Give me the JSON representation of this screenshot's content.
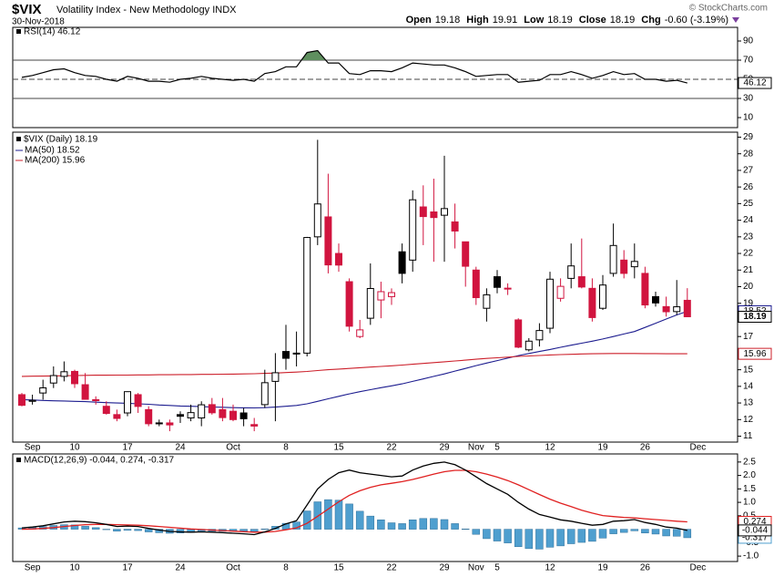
{
  "header": {
    "symbol": "$VIX",
    "description": "Volatility Index - New Methodology INDX",
    "date": "30-Nov-2018",
    "credit": "© StockCharts.com",
    "quote": [
      {
        "label": "Open",
        "value": "19.18"
      },
      {
        "label": "High",
        "value": "19.91"
      },
      {
        "label": "Low",
        "value": "18.19"
      },
      {
        "label": "Close",
        "value": "18.19"
      },
      {
        "label": "Chg",
        "value": "-0.60 (-3.19%)"
      }
    ]
  },
  "chart_data": [
    {
      "type": "line",
      "ylim": [
        0,
        100
      ],
      "yticks": [
        90,
        70,
        50,
        30,
        10
      ],
      "levels": [
        {
          "value": 70,
          "style": "solid",
          "fill": "#5f8f5f"
        },
        {
          "value": 50,
          "style": "dashed"
        },
        {
          "value": 30,
          "style": "solid"
        }
      ],
      "series": [
        {
          "name": "RSI(14) 46.12",
          "color": "#000000",
          "values": [
            52,
            54,
            57,
            60,
            61,
            57,
            54,
            53,
            50,
            48,
            53,
            51,
            48,
            48,
            47,
            50,
            51,
            53,
            51,
            50,
            49,
            50,
            48,
            56,
            58,
            63,
            63,
            78,
            80,
            67,
            67,
            56,
            55,
            59,
            59,
            58,
            62,
            67,
            66,
            65,
            65,
            62,
            58,
            53,
            54,
            55,
            55,
            47,
            48,
            49,
            55,
            55,
            58,
            55,
            51,
            54,
            58,
            55,
            56,
            50,
            50,
            48,
            49,
            46.12,
            null
          ]
        }
      ]
    },
    {
      "type": "candlestick",
      "name": "$VIX (Daily) 18.19",
      "up_color": "#000000",
      "down_color": "#d1143f",
      "categories": [
        null,
        "Sep",
        null,
        null,
        null,
        "10",
        null,
        null,
        null,
        null,
        "17",
        null,
        null,
        null,
        null,
        "24",
        null,
        null,
        null,
        null,
        "Oct",
        null,
        null,
        null,
        null,
        "8",
        null,
        null,
        null,
        null,
        "15",
        null,
        null,
        null,
        null,
        "22",
        null,
        null,
        null,
        null,
        "29",
        null,
        null,
        "Nov",
        null,
        "5",
        null,
        null,
        null,
        null,
        "12",
        null,
        null,
        null,
        null,
        "19",
        null,
        null,
        null,
        "26",
        null,
        null,
        null,
        null,
        "Dec"
      ],
      "open": [
        13.5,
        13.1,
        13.6,
        14.2,
        14.6,
        14.9,
        14.1,
        13.2,
        12.8,
        12.3,
        12.4,
        13.5,
        12.6,
        11.8,
        11.8,
        12.3,
        12.1,
        12.1,
        12.9,
        12.6,
        12.5,
        12.4,
        11.7,
        12.9,
        14.3,
        16.1,
        16.0,
        16.0,
        23.0,
        24.2,
        22.0,
        20.3,
        17.0,
        18.1,
        19.2,
        19.4,
        22.1,
        21.6,
        24.8,
        24.5,
        24.3,
        23.9,
        22.7,
        21.0,
        18.7,
        20.6,
        19.9,
        18.0,
        16.2,
        16.8,
        17.5,
        19.3,
        20.5,
        20.6,
        19.9,
        18.7,
        20.8,
        21.6,
        21.2,
        20.8,
        19.4,
        18.8,
        18.5,
        19.18,
        null
      ],
      "high": [
        13.6,
        13.5,
        14.4,
        15.2,
        15.5,
        15.0,
        14.8,
        13.4,
        13.1,
        12.6,
        13.7,
        13.6,
        12.8,
        12.0,
        12.0,
        12.5,
        12.9,
        13.1,
        13.3,
        13.3,
        12.9,
        12.7,
        12.1,
        15.0,
        16.0,
        17.7,
        17.3,
        23.0,
        28.84,
        26.8,
        22.6,
        20.5,
        18.0,
        21.4,
        20.3,
        19.9,
        22.6,
        25.8,
        26.1,
        26.5,
        27.88,
        25.0,
        22.7,
        21.2,
        19.9,
        21.0,
        20.2,
        18.1,
        16.9,
        17.8,
        20.9,
        20.5,
        22.6,
        22.9,
        20.5,
        20.7,
        23.8,
        22.2,
        22.6,
        21.2,
        19.7,
        19.4,
        20.4,
        19.91,
        null
      ],
      "low": [
        12.8,
        12.9,
        13.2,
        13.9,
        14.3,
        13.9,
        13.2,
        12.9,
        12.3,
        11.9,
        12.2,
        12.4,
        11.6,
        11.6,
        11.3,
        11.8,
        11.9,
        11.6,
        12.3,
        11.9,
        11.9,
        11.6,
        11.3,
        12.7,
        11.9,
        15.0,
        15.2,
        15.8,
        22.5,
        20.8,
        20.9,
        17.3,
        16.9,
        17.7,
        18.1,
        18.9,
        20.2,
        20.9,
        22.5,
        21.5,
        21.5,
        22.3,
        20.0,
        18.9,
        17.9,
        19.6,
        19.5,
        16.3,
        16.1,
        16.4,
        17.2,
        19.1,
        19.9,
        19.9,
        17.9,
        18.6,
        20.6,
        20.5,
        20.5,
        18.7,
        18.8,
        18.2,
        18.3,
        18.19,
        null
      ],
      "close": [
        12.86,
        13.16,
        13.91,
        14.65,
        14.88,
        14.16,
        13.22,
        13.14,
        12.37,
        12.07,
        13.68,
        12.79,
        11.75,
        11.8,
        11.68,
        12.2,
        12.42,
        12.89,
        12.41,
        12.12,
        12.0,
        12.05,
        11.61,
        14.22,
        14.82,
        15.69,
        15.95,
        22.96,
        24.98,
        21.31,
        21.3,
        17.62,
        17.4,
        19.89,
        19.7,
        19.64,
        20.8,
        25.23,
        24.22,
        24.16,
        24.7,
        23.35,
        21.23,
        19.34,
        19.51,
        19.96,
        19.91,
        16.36,
        16.72,
        17.36,
        20.45,
        20.02,
        21.25,
        19.98,
        18.14,
        20.1,
        22.48,
        20.8,
        21.52,
        18.9,
        19.02,
        18.49,
        18.79,
        18.19,
        null
      ],
      "ylim": [
        10.7,
        29.3
      ],
      "yticks": [
        11,
        12,
        13,
        14,
        15,
        16,
        17,
        18,
        19,
        20,
        21,
        22,
        23,
        24,
        25,
        26,
        27,
        28,
        29
      ],
      "series": [
        {
          "name": "MA(50) 18.52",
          "color": "#1c1c8f",
          "values": [
            13.2,
            13.18,
            13.15,
            13.13,
            13.12,
            13.1,
            13.08,
            13.05,
            13.02,
            13.0,
            12.98,
            12.95,
            12.92,
            12.88,
            12.85,
            12.82,
            12.8,
            12.78,
            12.76,
            12.74,
            12.72,
            12.71,
            12.7,
            12.72,
            12.75,
            12.8,
            12.85,
            12.95,
            13.1,
            13.25,
            13.4,
            13.55,
            13.68,
            13.8,
            13.92,
            14.03,
            14.15,
            14.3,
            14.45,
            14.6,
            14.75,
            14.92,
            15.08,
            15.25,
            15.4,
            15.55,
            15.7,
            15.85,
            15.98,
            16.1,
            16.22,
            16.35,
            16.48,
            16.6,
            16.72,
            16.85,
            17.0,
            17.15,
            17.3,
            17.55,
            17.8,
            18.05,
            18.3,
            18.52,
            null
          ]
        },
        {
          "name": "MA(200) 15.96",
          "color": "#cc1f2a",
          "values": [
            14.6,
            14.61,
            14.62,
            14.63,
            14.64,
            14.65,
            14.66,
            14.67,
            14.67,
            14.68,
            14.68,
            14.69,
            14.69,
            14.7,
            14.7,
            14.71,
            14.71,
            14.72,
            14.72,
            14.73,
            14.74,
            14.75,
            14.76,
            14.78,
            14.8,
            14.83,
            14.86,
            14.9,
            14.95,
            15.0,
            15.04,
            15.08,
            15.12,
            15.16,
            15.2,
            15.24,
            15.28,
            15.33,
            15.38,
            15.43,
            15.48,
            15.53,
            15.58,
            15.63,
            15.68,
            15.72,
            15.76,
            15.8,
            15.83,
            15.86,
            15.89,
            15.91,
            15.93,
            15.95,
            15.96,
            15.97,
            15.98,
            15.98,
            15.98,
            15.97,
            15.97,
            15.96,
            15.96,
            15.96,
            null
          ]
        }
      ]
    },
    {
      "type": "macd",
      "label": "MACD(12,26,9) -0.044, 0.274, -0.317",
      "categories": [
        null,
        "Sep",
        null,
        null,
        null,
        "10",
        null,
        null,
        null,
        null,
        "17",
        null,
        null,
        null,
        null,
        "24",
        null,
        null,
        null,
        null,
        "Oct",
        null,
        null,
        null,
        null,
        "8",
        null,
        null,
        null,
        null,
        "15",
        null,
        null,
        null,
        null,
        "22",
        null,
        null,
        null,
        null,
        "29",
        null,
        null,
        "Nov",
        null,
        "5",
        null,
        null,
        null,
        null,
        "12",
        null,
        null,
        null,
        null,
        "19",
        null,
        null,
        null,
        "26",
        null,
        null,
        null,
        null,
        "Dec"
      ],
      "ylim": [
        -1.2,
        2.8
      ],
      "yticks": [
        2.5,
        {
          "value": 2,
          "label": "2.0"
        },
        1.5,
        {
          "value": 1,
          "label": "1.0"
        },
        0.5,
        {
          "value": 0,
          "label": "0.0"
        },
        -0.5,
        {
          "value": -1,
          "label": "-1.0"
        }
      ],
      "series": [
        {
          "kind": "bar",
          "color": "#4f9fcf",
          "values": [
            0.05,
            0.07,
            0.1,
            0.14,
            0.17,
            0.16,
            0.11,
            0.06,
            0.0,
            -0.07,
            -0.04,
            -0.05,
            -0.1,
            -0.13,
            -0.15,
            -0.14,
            -0.12,
            -0.09,
            -0.08,
            -0.08,
            -0.08,
            -0.08,
            -0.09,
            0.01,
            0.11,
            0.22,
            0.27,
            0.68,
            1.02,
            1.1,
            1.08,
            0.94,
            0.67,
            0.49,
            0.35,
            0.24,
            0.21,
            0.35,
            0.4,
            0.4,
            0.36,
            0.21,
            0.01,
            -0.19,
            -0.35,
            -0.44,
            -0.51,
            -0.65,
            -0.72,
            -0.74,
            -0.67,
            -0.62,
            -0.54,
            -0.49,
            -0.45,
            -0.33,
            -0.17,
            -0.12,
            -0.06,
            -0.14,
            -0.18,
            -0.25,
            -0.26,
            -0.317,
            null
          ]
        },
        {
          "kind": "line",
          "color": "#e02020",
          "values": [
            0.0,
            0.01,
            0.03,
            0.06,
            0.1,
            0.14,
            0.17,
            0.18,
            0.18,
            0.17,
            0.16,
            0.15,
            0.13,
            0.1,
            0.07,
            0.04,
            0.01,
            -0.01,
            -0.03,
            -0.05,
            -0.07,
            -0.09,
            -0.11,
            -0.11,
            -0.08,
            -0.02,
            0.05,
            0.22,
            0.48,
            0.75,
            1.02,
            1.26,
            1.43,
            1.56,
            1.65,
            1.71,
            1.77,
            1.85,
            1.95,
            2.05,
            2.14,
            2.19,
            2.19,
            2.14,
            2.05,
            1.94,
            1.81,
            1.65,
            1.47,
            1.29,
            1.12,
            0.97,
            0.84,
            0.71,
            0.6,
            0.51,
            0.47,
            0.44,
            0.42,
            0.39,
            0.36,
            0.33,
            0.3,
            0.274,
            null
          ]
        },
        {
          "kind": "line",
          "color": "#000000",
          "values": [
            0.05,
            0.08,
            0.13,
            0.2,
            0.27,
            0.3,
            0.28,
            0.24,
            0.18,
            0.1,
            0.12,
            0.1,
            0.03,
            -0.03,
            -0.08,
            -0.1,
            -0.11,
            -0.1,
            -0.11,
            -0.13,
            -0.15,
            -0.17,
            -0.2,
            -0.1,
            0.03,
            0.2,
            0.32,
            0.9,
            1.5,
            1.85,
            2.1,
            2.2,
            2.1,
            2.05,
            2.0,
            1.95,
            1.98,
            2.2,
            2.35,
            2.45,
            2.5,
            2.4,
            2.2,
            1.95,
            1.7,
            1.5,
            1.3,
            1.0,
            0.75,
            0.55,
            0.45,
            0.35,
            0.3,
            0.22,
            0.15,
            0.18,
            0.3,
            0.32,
            0.36,
            0.25,
            0.18,
            0.08,
            0.04,
            -0.044,
            null
          ]
        }
      ]
    }
  ]
}
